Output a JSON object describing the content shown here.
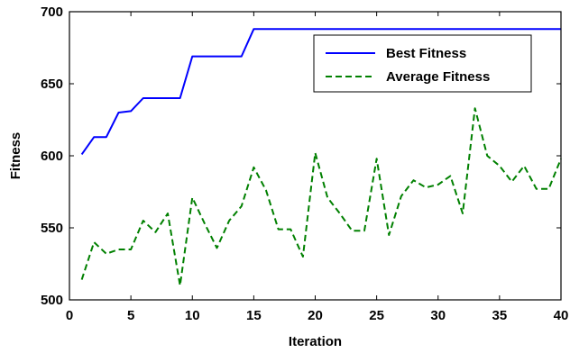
{
  "chart_data": {
    "type": "line",
    "xlabel": "Iteration",
    "ylabel": "Fitness",
    "xlim": [
      0,
      40
    ],
    "ylim": [
      500,
      700
    ],
    "xticks": [
      0,
      5,
      10,
      15,
      20,
      25,
      30,
      35,
      40
    ],
    "yticks": [
      500,
      550,
      600,
      650,
      700
    ],
    "grid": false,
    "legend": "top-right",
    "series": [
      {
        "name": "Best Fitness",
        "color": "#0000ff",
        "style": "solid",
        "x": [
          1,
          2,
          3,
          4,
          5,
          6,
          7,
          8,
          9,
          10,
          11,
          12,
          13,
          14,
          15,
          16,
          17,
          18,
          19,
          20,
          21,
          22,
          23,
          24,
          25,
          26,
          27,
          28,
          29,
          30,
          31,
          32,
          33,
          34,
          35,
          36,
          37,
          38,
          39,
          40
        ],
        "values": [
          601,
          613,
          613,
          630,
          631,
          640,
          640,
          640,
          640,
          669,
          669,
          669,
          669,
          669,
          688,
          688,
          688,
          688,
          688,
          688,
          688,
          688,
          688,
          688,
          688,
          688,
          688,
          688,
          688,
          688,
          688,
          688,
          688,
          688,
          688,
          688,
          688,
          688,
          688,
          688
        ]
      },
      {
        "name": "Average Fitness",
        "color": "#008000",
        "style": "dashed",
        "x": [
          1,
          2,
          3,
          4,
          5,
          6,
          7,
          8,
          9,
          10,
          11,
          12,
          13,
          14,
          15,
          16,
          17,
          18,
          19,
          20,
          21,
          22,
          23,
          24,
          25,
          26,
          27,
          28,
          29,
          30,
          31,
          32,
          33,
          34,
          35,
          36,
          37,
          38,
          39,
          40
        ],
        "values": [
          514,
          540,
          532,
          535,
          535,
          555,
          547,
          560,
          510,
          571,
          553,
          536,
          555,
          565,
          592,
          576,
          549,
          549,
          530,
          602,
          571,
          560,
          548,
          548,
          598,
          545,
          572,
          583,
          578,
          580,
          586,
          560,
          633,
          600,
          593,
          582,
          593,
          577,
          577,
          598
        ]
      }
    ]
  }
}
